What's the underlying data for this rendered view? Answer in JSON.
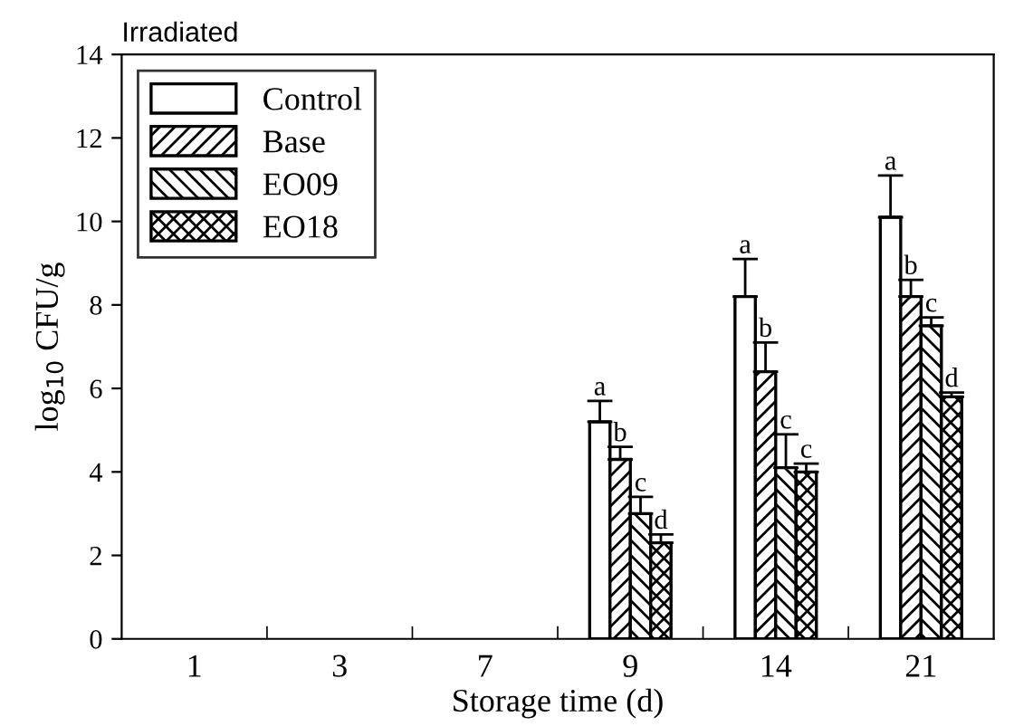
{
  "chart_data": {
    "type": "bar",
    "title": "Irradiated",
    "xlabel": "Storage time (d)",
    "ylabel": "log$_{10}$ CFU/g",
    "categories": [
      "1",
      "3",
      "7",
      "9",
      "14",
      "21"
    ],
    "series": [
      {
        "name": "Control",
        "color": "#ffffff",
        "values": [
          null,
          null,
          null,
          5.2,
          8.2,
          10.1
        ],
        "errors": [
          null,
          null,
          null,
          [
            5.2,
            5.7
          ],
          [
            8.2,
            9.1
          ],
          [
            10.1,
            11.1
          ]
        ]
      },
      {
        "name": "Base",
        "color": "#000000",
        "values": [
          null,
          null,
          null,
          4.3,
          6.4,
          8.2
        ],
        "errors": [
          null,
          null,
          null,
          [
            4.3,
            4.6
          ],
          [
            6.4,
            7.1
          ],
          [
            8.2,
            8.6
          ]
        ]
      },
      {
        "name": "EO09",
        "color": "#000000",
        "values": [
          null,
          null,
          null,
          3.0,
          4.1,
          7.5
        ],
        "errors": [
          null,
          null,
          null,
          [
            3.0,
            3.4
          ],
          [
            4.1,
            4.9
          ],
          [
            7.5,
            7.7
          ]
        ]
      },
      {
        "name": "EO18",
        "color": "#000000",
        "values": [
          null,
          null,
          null,
          2.3,
          4.0,
          5.8
        ],
        "errors": [
          null,
          null,
          null,
          [
            2.3,
            2.5
          ],
          [
            4.0,
            4.2
          ],
          [
            5.8,
            5.9
          ]
        ]
      }
    ],
    "annotations": [
      "a",
      "b",
      "c",
      "d",
      "a",
      "b",
      "c",
      "c",
      "a",
      "b",
      "c",
      "d"
    ],
    "ylim": [
      0,
      14
    ],
    "yticks": [
      0,
      2,
      4,
      6,
      8,
      10,
      12,
      14
    ],
    "grid": false,
    "legend": "top left"
  }
}
